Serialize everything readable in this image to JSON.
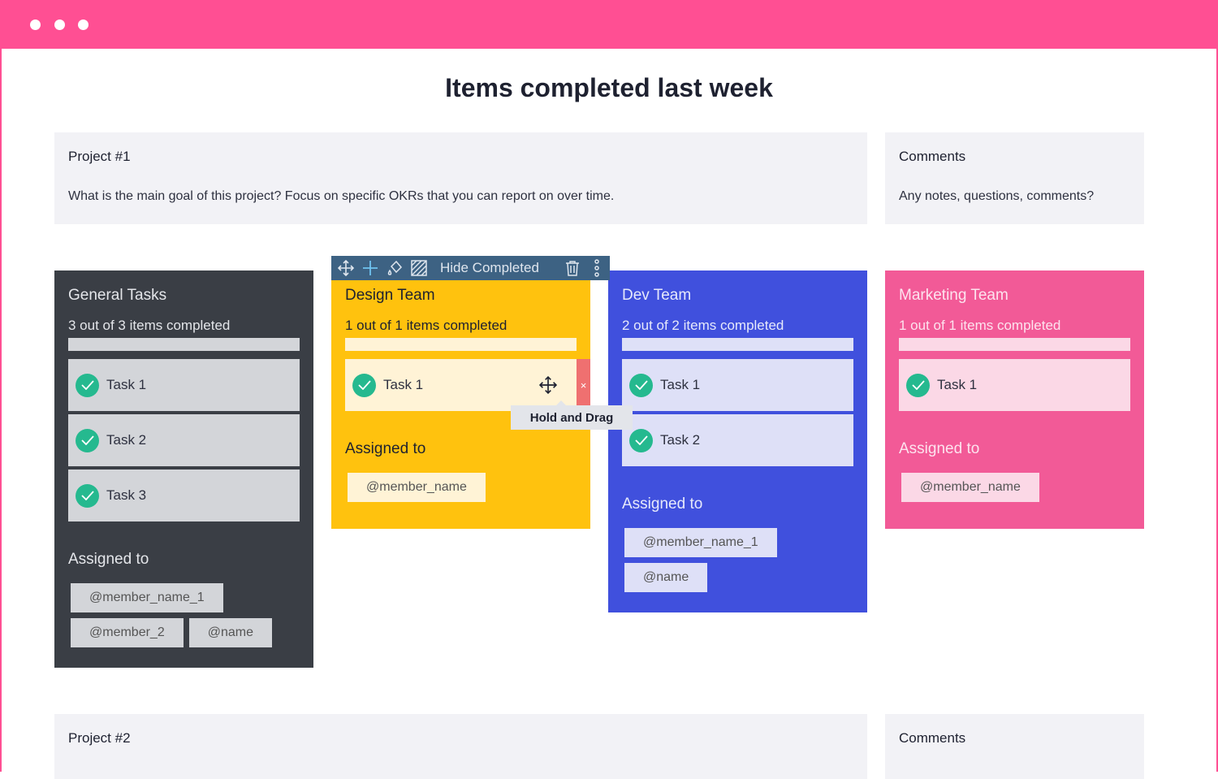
{
  "window": {
    "accent": "#FF4F93"
  },
  "page_title": "Items completed last week",
  "project1": {
    "heading": "Project #1",
    "description": "What is the main goal of this project? Focus on specific OKRs that you can report on over time."
  },
  "comments1": {
    "heading": "Comments",
    "description": "Any notes, questions, comments?"
  },
  "project2": {
    "heading": "Project #2"
  },
  "comments2": {
    "heading": "Comments"
  },
  "toolbar": {
    "hide_completed": "Hide Completed",
    "icons": [
      "move-icon",
      "plus-icon",
      "paint-bucket-icon",
      "hatch-pattern-icon",
      "trash-icon",
      "more-vertical-icon"
    ]
  },
  "tooltip": "Hold and Drag",
  "cards": [
    {
      "id": "general-tasks",
      "title": "General Tasks",
      "progress_text": "3 out of 3 items completed",
      "progress": 1.0,
      "tasks": [
        "Task 1",
        "Task 2",
        "Task 3"
      ],
      "assigned_label": "Assigned to",
      "members": [
        "@member_name_1",
        "@member_2",
        "@name"
      ],
      "bg": "#3a3e45",
      "text": "#e4e6ea",
      "light": "#d3d5d9",
      "tasktext": "#2e3140"
    },
    {
      "id": "design-team",
      "title": "Design Team",
      "progress_text": "1 out of 1 items completed",
      "progress": 1.0,
      "tasks": [
        "Task 1"
      ],
      "assigned_label": "Assigned to",
      "members": [
        "@member_name"
      ],
      "bg": "#FFC20E",
      "text": "#1e2130",
      "light": "#FFF3D6",
      "tasktext": "#2e3140"
    },
    {
      "id": "dev-team",
      "title": "Dev Team",
      "progress_text": "2 out of 2 items completed",
      "progress": 1.0,
      "tasks": [
        "Task 1",
        "Task 2"
      ],
      "assigned_label": "Assigned to",
      "members": [
        "@member_name_1",
        "@name"
      ],
      "bg": "#4050DD",
      "text": "#e6e9fb",
      "light": "#DEE0F7",
      "tasktext": "#2e3140"
    },
    {
      "id": "marketing-team",
      "title": "Marketing Team",
      "progress_text": "1 out of 1 items completed",
      "progress": 1.0,
      "tasks": [
        "Task 1"
      ],
      "assigned_label": "Assigned to",
      "members": [
        "@member_name"
      ],
      "bg": "#F25A97",
      "text": "#fde3ee",
      "light": "#FBD8E6",
      "tasktext": "#2e3140"
    }
  ]
}
